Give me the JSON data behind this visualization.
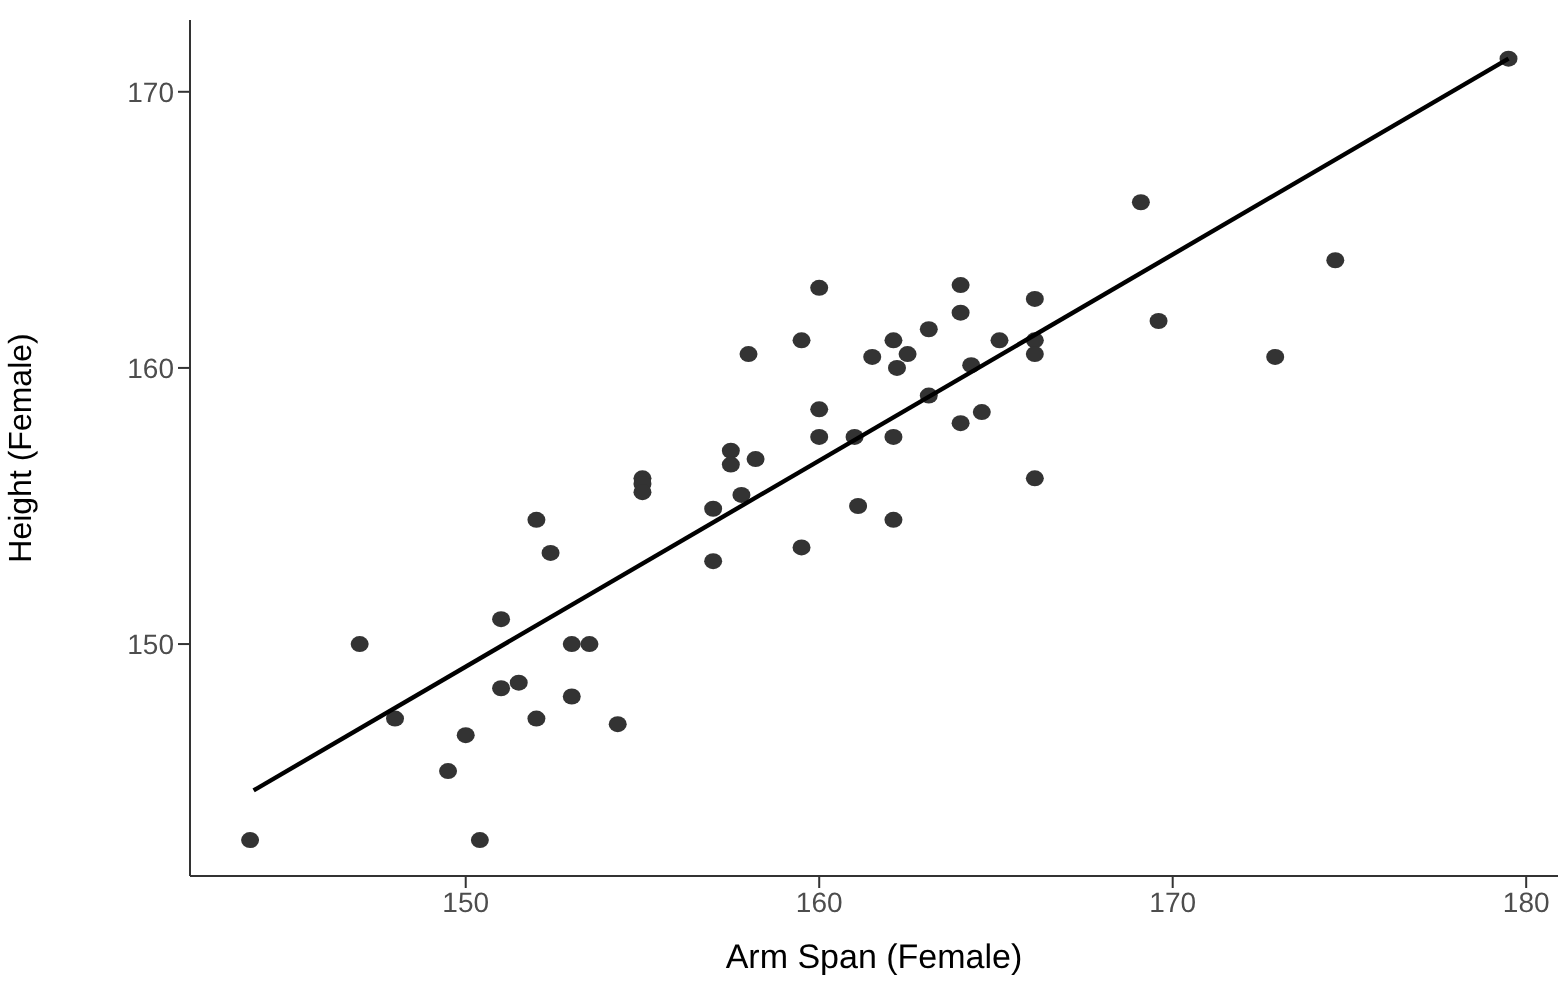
{
  "chart_data": {
    "type": "scatter",
    "xlabel": "Arm Span (Female)",
    "ylabel": "Height (Female)",
    "xlim": [
      142.2,
      180.9
    ],
    "ylim": [
      141.6,
      172.6
    ],
    "xticks": [
      150,
      160,
      170,
      180
    ],
    "yticks": [
      150,
      160,
      170
    ],
    "grid": false,
    "legend": false,
    "series": [
      {
        "color": "#333333",
        "marker": "circle",
        "x": [
          143.9,
          147.0,
          148.0,
          149.5,
          150.0,
          150.4,
          151.0,
          151.0,
          151.5,
          152.0,
          152.0,
          152.4,
          153.0,
          153.0,
          153.5,
          154.3,
          155.0,
          155.0,
          155.0,
          157.0,
          157.0,
          157.5,
          157.5,
          157.8,
          158.2,
          158.0,
          159.5,
          159.5,
          160.0,
          160.0,
          160.0,
          161.0,
          161.1,
          161.5,
          162.1,
          162.5,
          162.2,
          162.1,
          162.1,
          163.1,
          163.1,
          164.0,
          164.0,
          164.3,
          164.6,
          164.0,
          165.1,
          166.1,
          166.1,
          166.1,
          166.1,
          169.1,
          169.6,
          172.9,
          174.6,
          179.5
        ],
        "values": [
          142.9,
          150.0,
          147.3,
          145.4,
          146.7,
          142.9,
          150.9,
          148.4,
          148.6,
          154.5,
          147.3,
          153.3,
          150.0,
          148.1,
          150.0,
          147.1,
          156.0,
          155.8,
          155.5,
          154.9,
          153.0,
          157.0,
          156.5,
          155.4,
          156.7,
          160.5,
          161.0,
          153.5,
          162.9,
          158.5,
          157.5,
          157.5,
          155.0,
          160.4,
          161.0,
          160.5,
          160.0,
          157.5,
          154.5,
          161.4,
          159.0,
          163.0,
          162.0,
          160.1,
          158.4,
          158.0,
          161.0,
          162.5,
          161.0,
          160.5,
          156.0,
          166.0,
          161.7,
          160.4,
          163.9,
          171.2
        ]
      },
      {
        "type": "line",
        "color": "#000000",
        "line_style": "solid",
        "x": [
          144.0,
          179.5
        ],
        "values": [
          144.7,
          171.2
        ]
      }
    ]
  }
}
